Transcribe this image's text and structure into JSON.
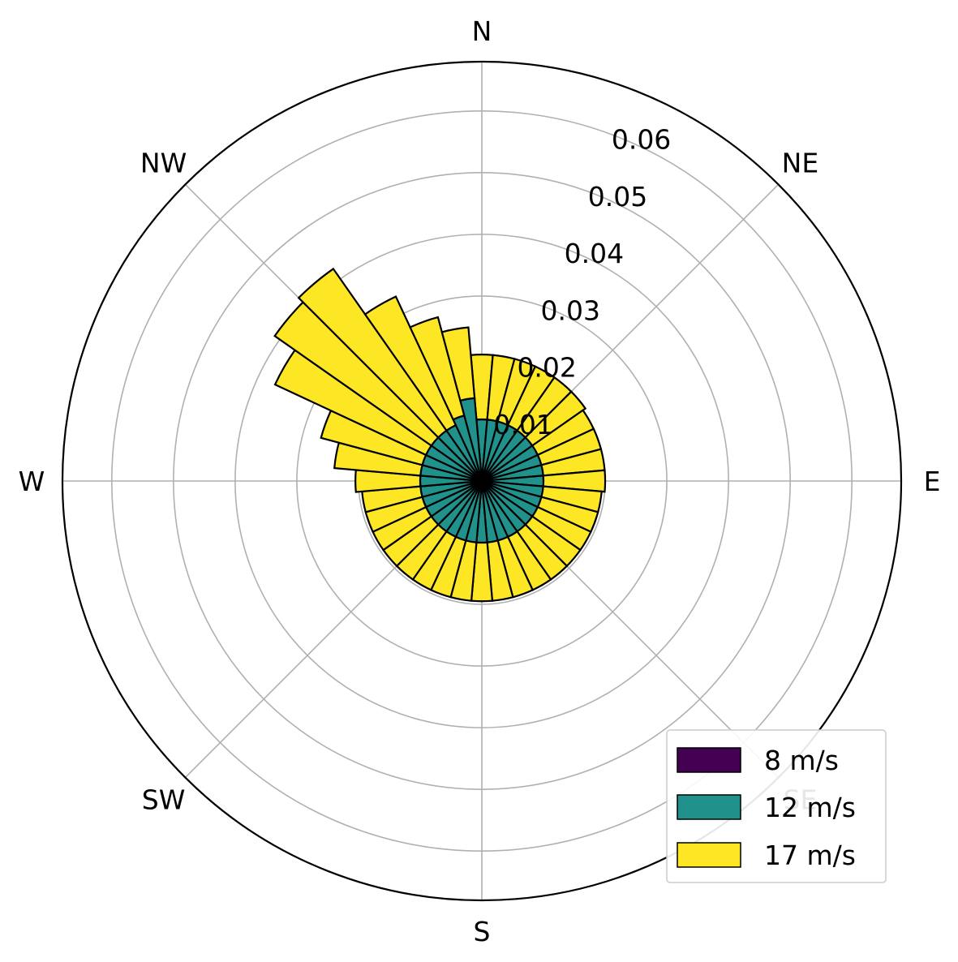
{
  "chart_data": {
    "type": "bar",
    "subtype": "polar-stacked (wind rose)",
    "title": "",
    "theta_zero": "N",
    "theta_direction": "clockwise",
    "direction_labels": [
      "N",
      "NE",
      "E",
      "SE",
      "S",
      "SW",
      "W",
      "NW"
    ],
    "radial_ticks": [
      0.01,
      0.02,
      0.03,
      0.04,
      0.05,
      0.06
    ],
    "radial_tick_labels": [
      "0.01",
      "0.02",
      "0.03",
      "0.04",
      "0.05",
      "0.06"
    ],
    "rlim": [
      0,
      0.068
    ],
    "grid": true,
    "legend_position": "lower-right",
    "sector_count": 36,
    "sector_start_deg": 0,
    "sector_width_deg": 10,
    "categories": [
      "0°",
      "10°",
      "20°",
      "30°",
      "40°",
      "50°",
      "60°",
      "70°",
      "80°",
      "90°",
      "100°",
      "110°",
      "120°",
      "130°",
      "140°",
      "150°",
      "160°",
      "170°",
      "180°",
      "190°",
      "200°",
      "210°",
      "220°",
      "230°",
      "240°",
      "250°",
      "260°",
      "270°",
      "280°",
      "290°",
      "300°",
      "310°",
      "320°",
      "330°",
      "340°",
      "350°"
    ],
    "series": [
      {
        "name": "8 m/s",
        "color": "#440154",
        "values": [
          0.0015,
          0.0015,
          0.0015,
          0.0015,
          0.0015,
          0.0015,
          0.0015,
          0.0015,
          0.0015,
          0.0015,
          0.0015,
          0.0015,
          0.0015,
          0.0015,
          0.0015,
          0.0015,
          0.0015,
          0.0015,
          0.0015,
          0.0015,
          0.0015,
          0.0015,
          0.0015,
          0.0015,
          0.0015,
          0.0015,
          0.0015,
          0.0015,
          0.0015,
          0.0015,
          0.0015,
          0.0015,
          0.0015,
          0.0015,
          0.0015,
          0.0015
        ]
      },
      {
        "name": "12 m/s",
        "color": "#21918c",
        "values": [
          0.0085,
          0.0085,
          0.0085,
          0.0085,
          0.0085,
          0.0085,
          0.0085,
          0.0085,
          0.0085,
          0.0085,
          0.0085,
          0.0085,
          0.0085,
          0.0085,
          0.0085,
          0.0085,
          0.0085,
          0.0085,
          0.0085,
          0.0085,
          0.0085,
          0.0085,
          0.0085,
          0.0085,
          0.0085,
          0.0085,
          0.0085,
          0.0085,
          0.0085,
          0.0085,
          0.0085,
          0.0085,
          0.0085,
          0.0085,
          0.0095,
          0.012
        ]
      },
      {
        "name": "17 m/s",
        "color": "#fde725",
        "values": [
          0.0105,
          0.0105,
          0.0105,
          0.0105,
          0.0105,
          0.0105,
          0.01,
          0.01,
          0.01,
          0.01,
          0.0095,
          0.0095,
          0.0095,
          0.0095,
          0.0095,
          0.0095,
          0.0095,
          0.0095,
          0.0095,
          0.0095,
          0.0095,
          0.0095,
          0.0095,
          0.0095,
          0.0095,
          0.0095,
          0.0095,
          0.0105,
          0.014,
          0.017,
          0.027,
          0.031,
          0.032,
          0.023,
          0.0165,
          0.0115
        ]
      }
    ]
  },
  "legend": {
    "items": [
      {
        "label": "8 m/s",
        "color": "#440154"
      },
      {
        "label": "12 m/s",
        "color": "#21918c"
      },
      {
        "label": "17 m/s",
        "color": "#fde725"
      }
    ]
  }
}
